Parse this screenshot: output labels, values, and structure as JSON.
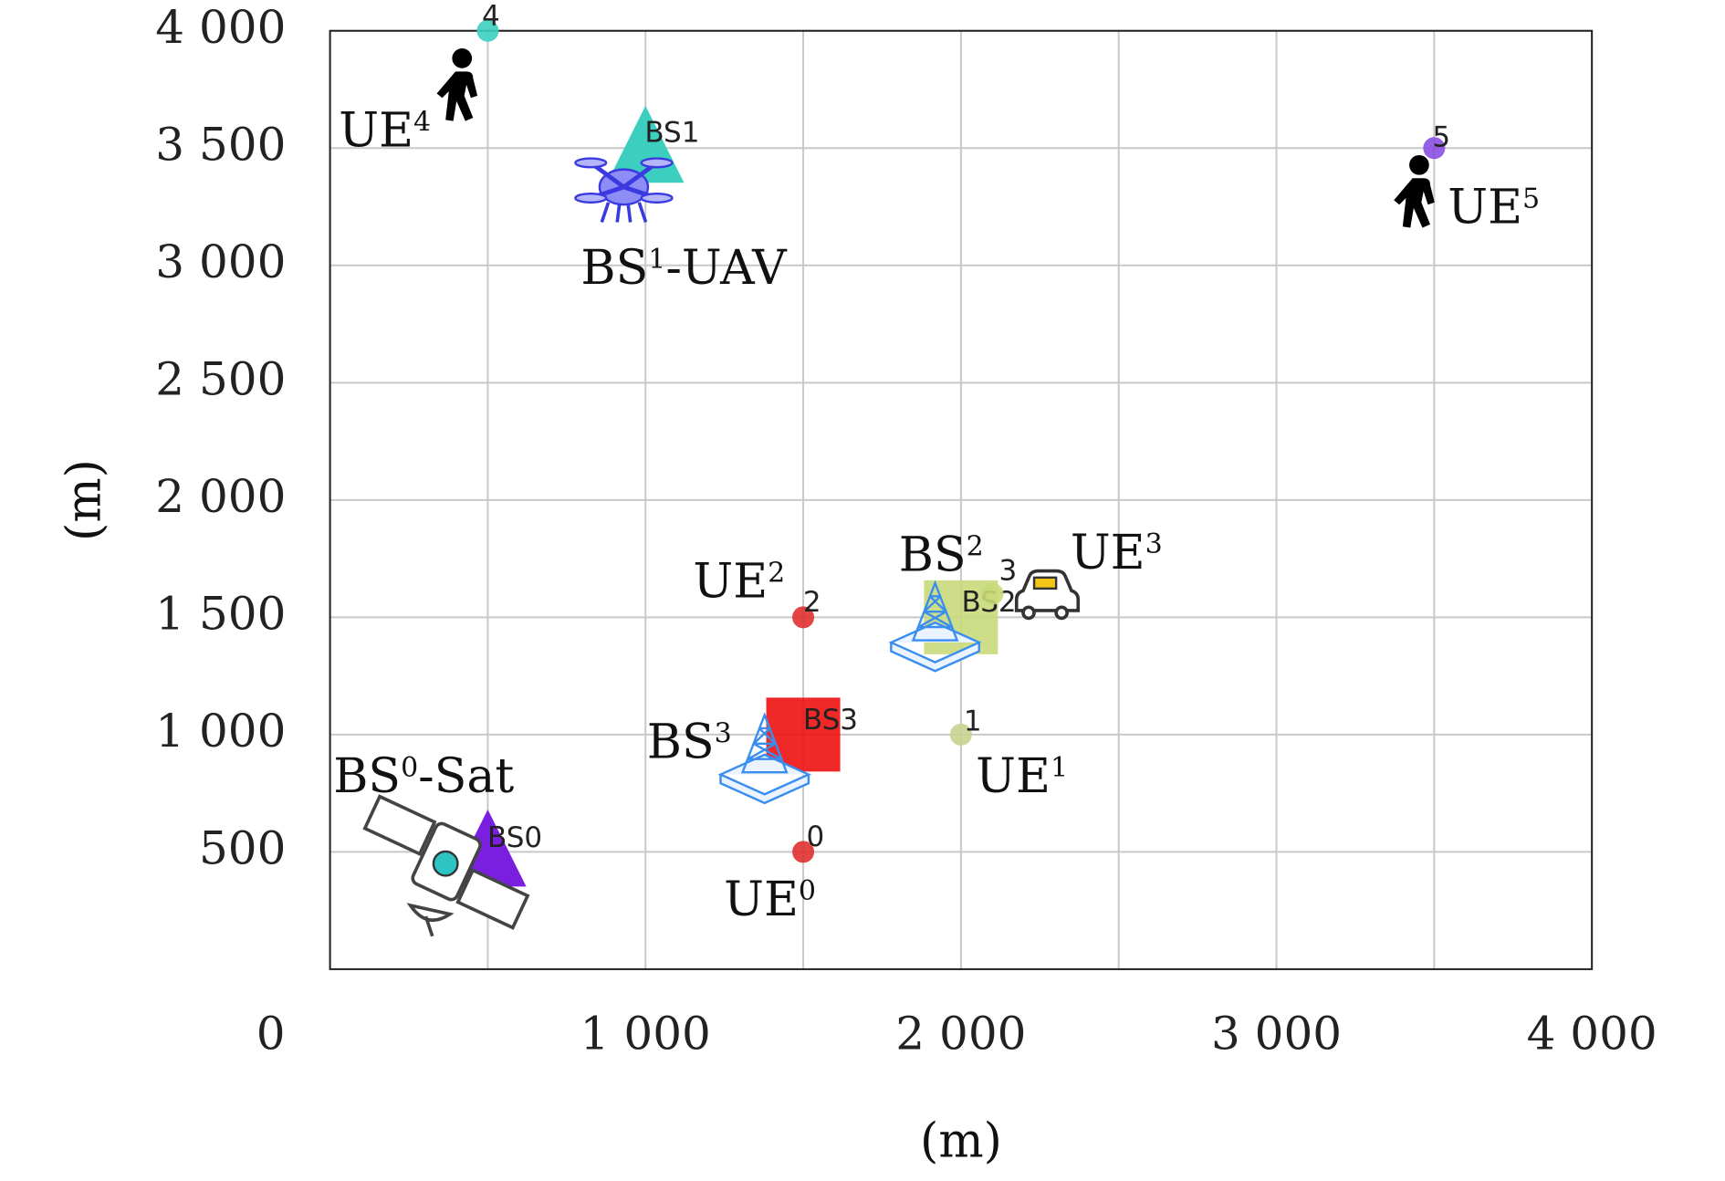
{
  "chart_data": {
    "type": "scatter",
    "xlabel": "(m)",
    "ylabel": "(m)",
    "xlim": [
      0,
      4000
    ],
    "ylim": [
      0,
      4000
    ],
    "xticks": [
      0,
      {
        "value": 1000,
        "label": "1 000"
      },
      {
        "value": 2000,
        "label": "2 000"
      },
      {
        "value": 3000,
        "label": "3 000"
      },
      {
        "value": 4000,
        "label": "4 000"
      }
    ],
    "x_minor_grid": [
      500,
      1500,
      2500,
      3500
    ],
    "yticks": [
      500,
      {
        "value": 1000,
        "label": "1 000"
      },
      {
        "value": 1500,
        "label": "1 500"
      },
      {
        "value": 2000,
        "label": "2 000"
      },
      {
        "value": 2500,
        "label": "2 500"
      },
      {
        "value": 3000,
        "label": "3 000"
      },
      {
        "value": 3500,
        "label": "3 500"
      },
      {
        "value": 4000,
        "label": "4 000"
      }
    ],
    "grid": true,
    "base_stations": [
      {
        "tag": "BS0",
        "x": 500,
        "y": 500,
        "marker": "triangle",
        "color": "#7a1fe0",
        "label_base": "BS",
        "label_sup": "0",
        "label_suffix": "-Sat"
      },
      {
        "tag": "BS1",
        "x": 1000,
        "y": 3500,
        "marker": "triangle",
        "color": "#3ccfc0",
        "label_base": "BS",
        "label_sup": "1",
        "label_suffix": "-UAV"
      },
      {
        "tag": "BS2",
        "x": 2000,
        "y": 1500,
        "marker": "square",
        "color": "#c9d97a",
        "label_base": "BS",
        "label_sup": "2"
      },
      {
        "tag": "BS3",
        "x": 1500,
        "y": 1000,
        "marker": "square",
        "color": "#ee1111",
        "label_base": "BS",
        "label_sup": "3"
      }
    ],
    "users": [
      {
        "tag": "0",
        "x": 1500,
        "y": 500,
        "color": "#e03030",
        "label_base": "UE",
        "label_sup": "0"
      },
      {
        "tag": "1",
        "x": 2000,
        "y": 1000,
        "color": "#c9d38f",
        "label_base": "UE",
        "label_sup": "1"
      },
      {
        "tag": "2",
        "x": 1500,
        "y": 1500,
        "color": "#e03030",
        "label_base": "UE",
        "label_sup": "2"
      },
      {
        "tag": "3",
        "x": 2100,
        "y": 1600,
        "color": "#c9d97a",
        "label_base": "UE",
        "label_sup": "3"
      },
      {
        "tag": "4",
        "x": 500,
        "y": 4000,
        "color": "#3ccfc0",
        "label_base": "UE",
        "label_sup": "4"
      },
      {
        "tag": "5",
        "x": 3500,
        "y": 3500,
        "color": "#8a4fe0",
        "label_base": "UE",
        "label_sup": "5"
      }
    ]
  }
}
